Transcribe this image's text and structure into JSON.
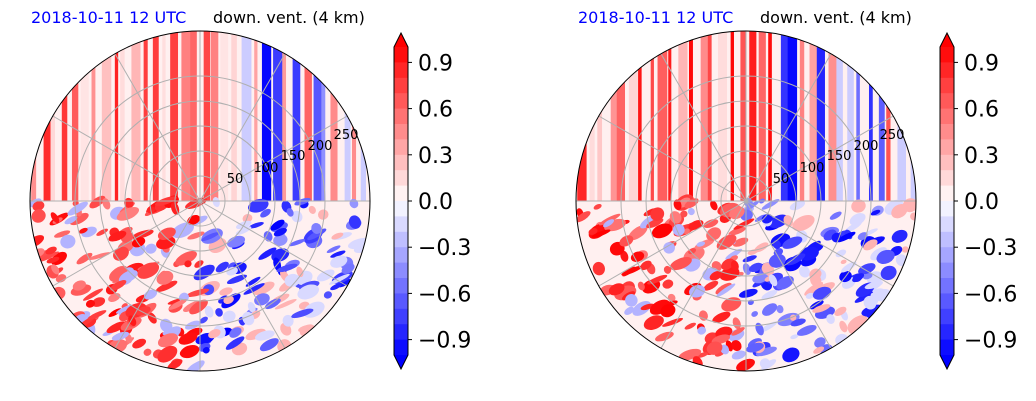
{
  "chart_data": [
    {
      "type": "heatmap",
      "projection": "polar",
      "title_date": "2018-10-11 12 UTC",
      "title_var": "down. vent. (4 km)",
      "radial_ticks": [
        50,
        100,
        150,
        200,
        250
      ],
      "colorbar": {
        "min": -1.0,
        "max": 1.0,
        "ticks": [
          "0.9",
          "0.6",
          "0.3",
          "0.0",
          "−0.3",
          "−0.6",
          "−0.9"
        ],
        "tick_values": [
          0.9,
          0.6,
          0.3,
          0.0,
          -0.3,
          -0.6,
          -0.9
        ],
        "colors": {
          "neg": "#0000ff",
          "mid": "#ffffff",
          "pos": "#ff0000"
        }
      },
      "seed": 11
    },
    {
      "type": "heatmap",
      "projection": "polar",
      "title_date": "2018-10-11 12 UTC",
      "title_var": "down. vent. (4 km)",
      "radial_ticks": [
        50,
        100,
        150,
        200,
        250
      ],
      "colorbar": {
        "min": -1.0,
        "max": 1.0,
        "ticks": [
          "0.9",
          "0.6",
          "0.3",
          "0.0",
          "−0.3",
          "−0.6",
          "−0.9"
        ],
        "tick_values": [
          0.9,
          0.6,
          0.3,
          0.0,
          -0.3,
          -0.6,
          -0.9
        ],
        "colors": {
          "neg": "#0000ff",
          "mid": "#ffffff",
          "pos": "#ff0000"
        }
      },
      "seed": 29
    }
  ]
}
